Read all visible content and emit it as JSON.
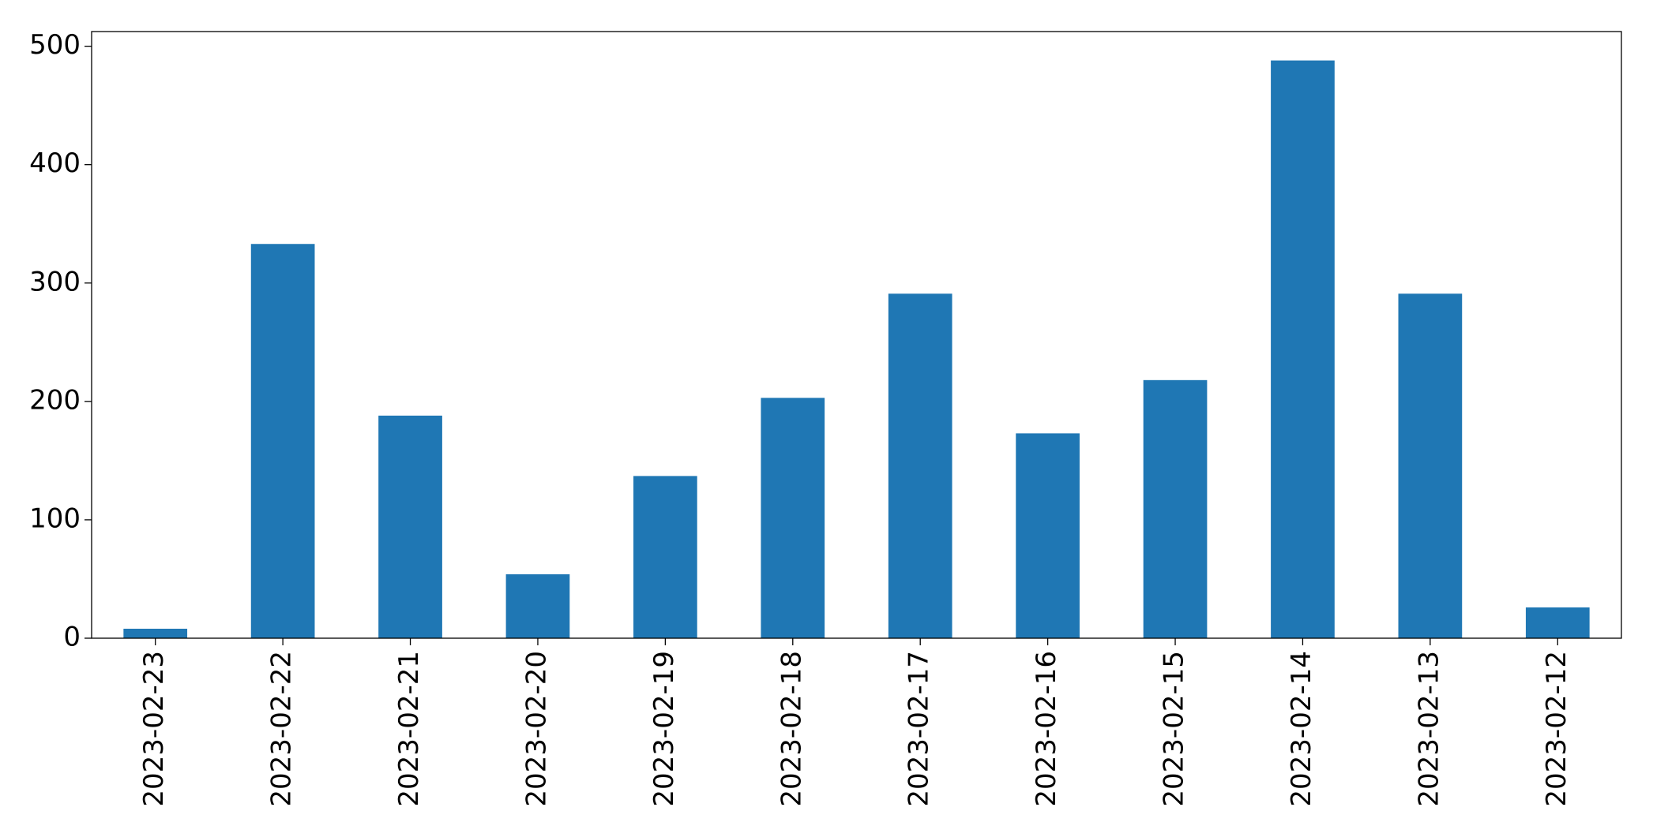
{
  "chart_data": {
    "type": "bar",
    "categories": [
      "2023-02-23",
      "2023-02-22",
      "2023-02-21",
      "2023-02-20",
      "2023-02-19",
      "2023-02-18",
      "2023-02-17",
      "2023-02-16",
      "2023-02-15",
      "2023-02-14",
      "2023-02-13",
      "2023-02-12"
    ],
    "values": [
      8,
      333,
      188,
      54,
      137,
      203,
      291,
      173,
      218,
      488,
      291,
      26
    ],
    "color": "#1f77b4",
    "ylim": [
      0,
      512.4
    ],
    "yticks": [
      0,
      100,
      200,
      300,
      400,
      500
    ],
    "grid": false
  }
}
